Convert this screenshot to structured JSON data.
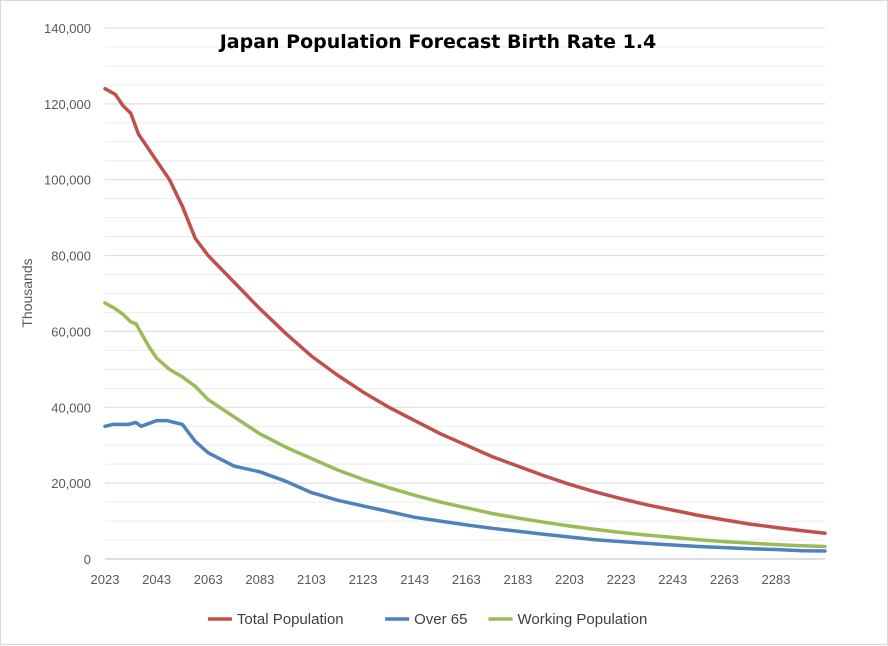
{
  "chart_data": {
    "type": "line",
    "title": "Japan Population Forecast Birth Rate 1.4",
    "xlabel": "",
    "ylabel": "Thousands",
    "xlim": [
      2023,
      2302
    ],
    "ylim": [
      0,
      140000
    ],
    "y_ticks": [
      0,
      20000,
      40000,
      60000,
      80000,
      100000,
      120000,
      140000
    ],
    "y_tick_labels": [
      "0",
      "20,000",
      "40,000",
      "60,000",
      "80,000",
      "100,000",
      "120,000",
      "140,000"
    ],
    "x_ticks": [
      2023,
      2043,
      2063,
      2083,
      2103,
      2123,
      2143,
      2163,
      2183,
      2203,
      2223,
      2243,
      2263,
      2283
    ],
    "x_tick_labels": [
      "2023",
      "2043",
      "2063",
      "2083",
      "2103",
      "2123",
      "2143",
      "2163",
      "2183",
      "2203",
      "2223",
      "2243",
      "2263",
      "2283"
    ],
    "grid": true,
    "legend_position": "bottom",
    "series": [
      {
        "name": "Total Population",
        "color": "#c0504d",
        "x": [
          2023,
          2027,
          2030,
          2033,
          2036,
          2038,
          2043,
          2048,
          2053,
          2058,
          2063,
          2073,
          2083,
          2093,
          2103,
          2113,
          2123,
          2133,
          2143,
          2153,
          2163,
          2173,
          2183,
          2193,
          2203,
          2213,
          2223,
          2233,
          2243,
          2253,
          2263,
          2273,
          2283,
          2293,
          2302
        ],
        "values": [
          124000,
          122500,
          119500,
          117500,
          112000,
          110000,
          105000,
          100000,
          93000,
          84500,
          80000,
          73000,
          66000,
          59500,
          53500,
          48500,
          44000,
          40000,
          36500,
          33000,
          30000,
          27000,
          24500,
          22000,
          19700,
          17700,
          15900,
          14300,
          12900,
          11500,
          10300,
          9200,
          8300,
          7500,
          6800
        ]
      },
      {
        "name": "Over 65",
        "color": "#4f81bd",
        "x": [
          2023,
          2026,
          2032,
          2035,
          2037,
          2043,
          2047,
          2053,
          2058,
          2063,
          2073,
          2083,
          2093,
          2103,
          2113,
          2123,
          2133,
          2143,
          2153,
          2163,
          2173,
          2183,
          2193,
          2203,
          2213,
          2223,
          2233,
          2243,
          2253,
          2263,
          2273,
          2283,
          2293,
          2302
        ],
        "values": [
          35000,
          35500,
          35500,
          36000,
          35000,
          36500,
          36500,
          35500,
          31000,
          28000,
          24500,
          23000,
          20500,
          17500,
          15500,
          14000,
          12500,
          11000,
          10000,
          9000,
          8100,
          7300,
          6500,
          5800,
          5100,
          4600,
          4100,
          3700,
          3300,
          3000,
          2700,
          2500,
          2200,
          2100
        ]
      },
      {
        "name": "Working Population",
        "color": "#9bbb59",
        "x": [
          2023,
          2027,
          2030,
          2033,
          2035,
          2040,
          2043,
          2048,
          2053,
          2058,
          2063,
          2073,
          2083,
          2093,
          2103,
          2113,
          2123,
          2133,
          2143,
          2153,
          2163,
          2173,
          2183,
          2193,
          2203,
          2213,
          2223,
          2233,
          2243,
          2253,
          2263,
          2273,
          2283,
          2293,
          2302
        ],
        "values": [
          67500,
          66000,
          64500,
          62500,
          62000,
          56000,
          53000,
          50000,
          48000,
          45500,
          42000,
          37500,
          33000,
          29500,
          26500,
          23500,
          21000,
          18800,
          16800,
          15000,
          13500,
          12000,
          10800,
          9700,
          8700,
          7800,
          7000,
          6300,
          5700,
          5100,
          4600,
          4200,
          3800,
          3500,
          3300
        ]
      }
    ]
  }
}
